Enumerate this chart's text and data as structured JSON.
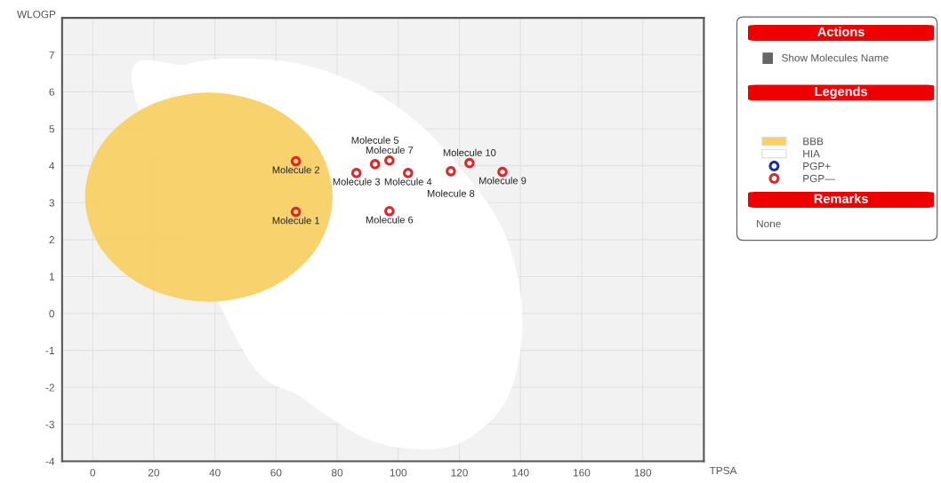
{
  "chart_data": {
    "type": "scatter",
    "xlabel": "TPSA",
    "ylabel": "WLOGP",
    "xlim": [
      -10,
      200
    ],
    "ylim": [
      -4,
      8
    ],
    "xticks": [
      0,
      20,
      40,
      60,
      80,
      100,
      120,
      140,
      160,
      180
    ],
    "yticks": [
      -4,
      -3,
      -2,
      -1,
      0,
      1,
      2,
      3,
      4,
      5,
      6,
      7
    ],
    "grid": true,
    "legend": "right",
    "series": [
      {
        "type": "area",
        "name": "BBB",
        "color": "#f8d064",
        "x": [
          78.5,
          73.1,
          58.3,
          38,
          17.8,
          2.9,
          -2.5,
          2.9,
          17.8,
          38,
          58.3,
          73.1
        ],
        "values": [
          3.15,
          4.57,
          5.6,
          5.98,
          5.6,
          4.57,
          3.15,
          1.74,
          0.7,
          0.32,
          0.7,
          1.74
        ]
      },
      {
        "type": "area",
        "name": "HIA",
        "color": "#ffffff",
        "x": [
          13.1,
          30.6,
          48.1,
          68.5,
          88.9,
          106.4,
          122.4,
          134.1,
          139.9,
          139.9,
          134.1,
          120.9,
          106.4,
          88.9,
          68.5,
          48.1
        ],
        "values": [
          6.13,
          6.74,
          6.9,
          6.74,
          6.13,
          5.17,
          3.73,
          2.29,
          0.61,
          -1.08,
          -2.52,
          -3.48,
          -3.67,
          -3.36,
          -2.28,
          -0.84
        ]
      },
      {
        "name": "PGP+",
        "color": "#1a2fb0",
        "marker": "circle"
      },
      {
        "name": "PGP—",
        "color": "#e0262a",
        "marker": "circle",
        "x": [
          66.5,
          66.5,
          86.3,
          103.2,
          92.4,
          97.1,
          97.1,
          117.2,
          134.1,
          123.3
        ],
        "values": [
          2.75,
          4.12,
          3.8,
          3.8,
          4.04,
          2.77,
          4.14,
          3.85,
          3.83,
          4.07
        ],
        "value_labels": [
          "Molecule 1",
          "Molecule 2",
          "Molecule 3",
          "Molecule 4",
          "Molecule 5",
          "Molecule 6",
          "Molecule 7",
          "Molecule 8",
          "Molecule 9",
          "Molecule 10"
        ]
      }
    ],
    "annotations": [
      "Actions",
      "Show Molecules Name",
      "Legends",
      "Remarks",
      "None"
    ]
  }
}
